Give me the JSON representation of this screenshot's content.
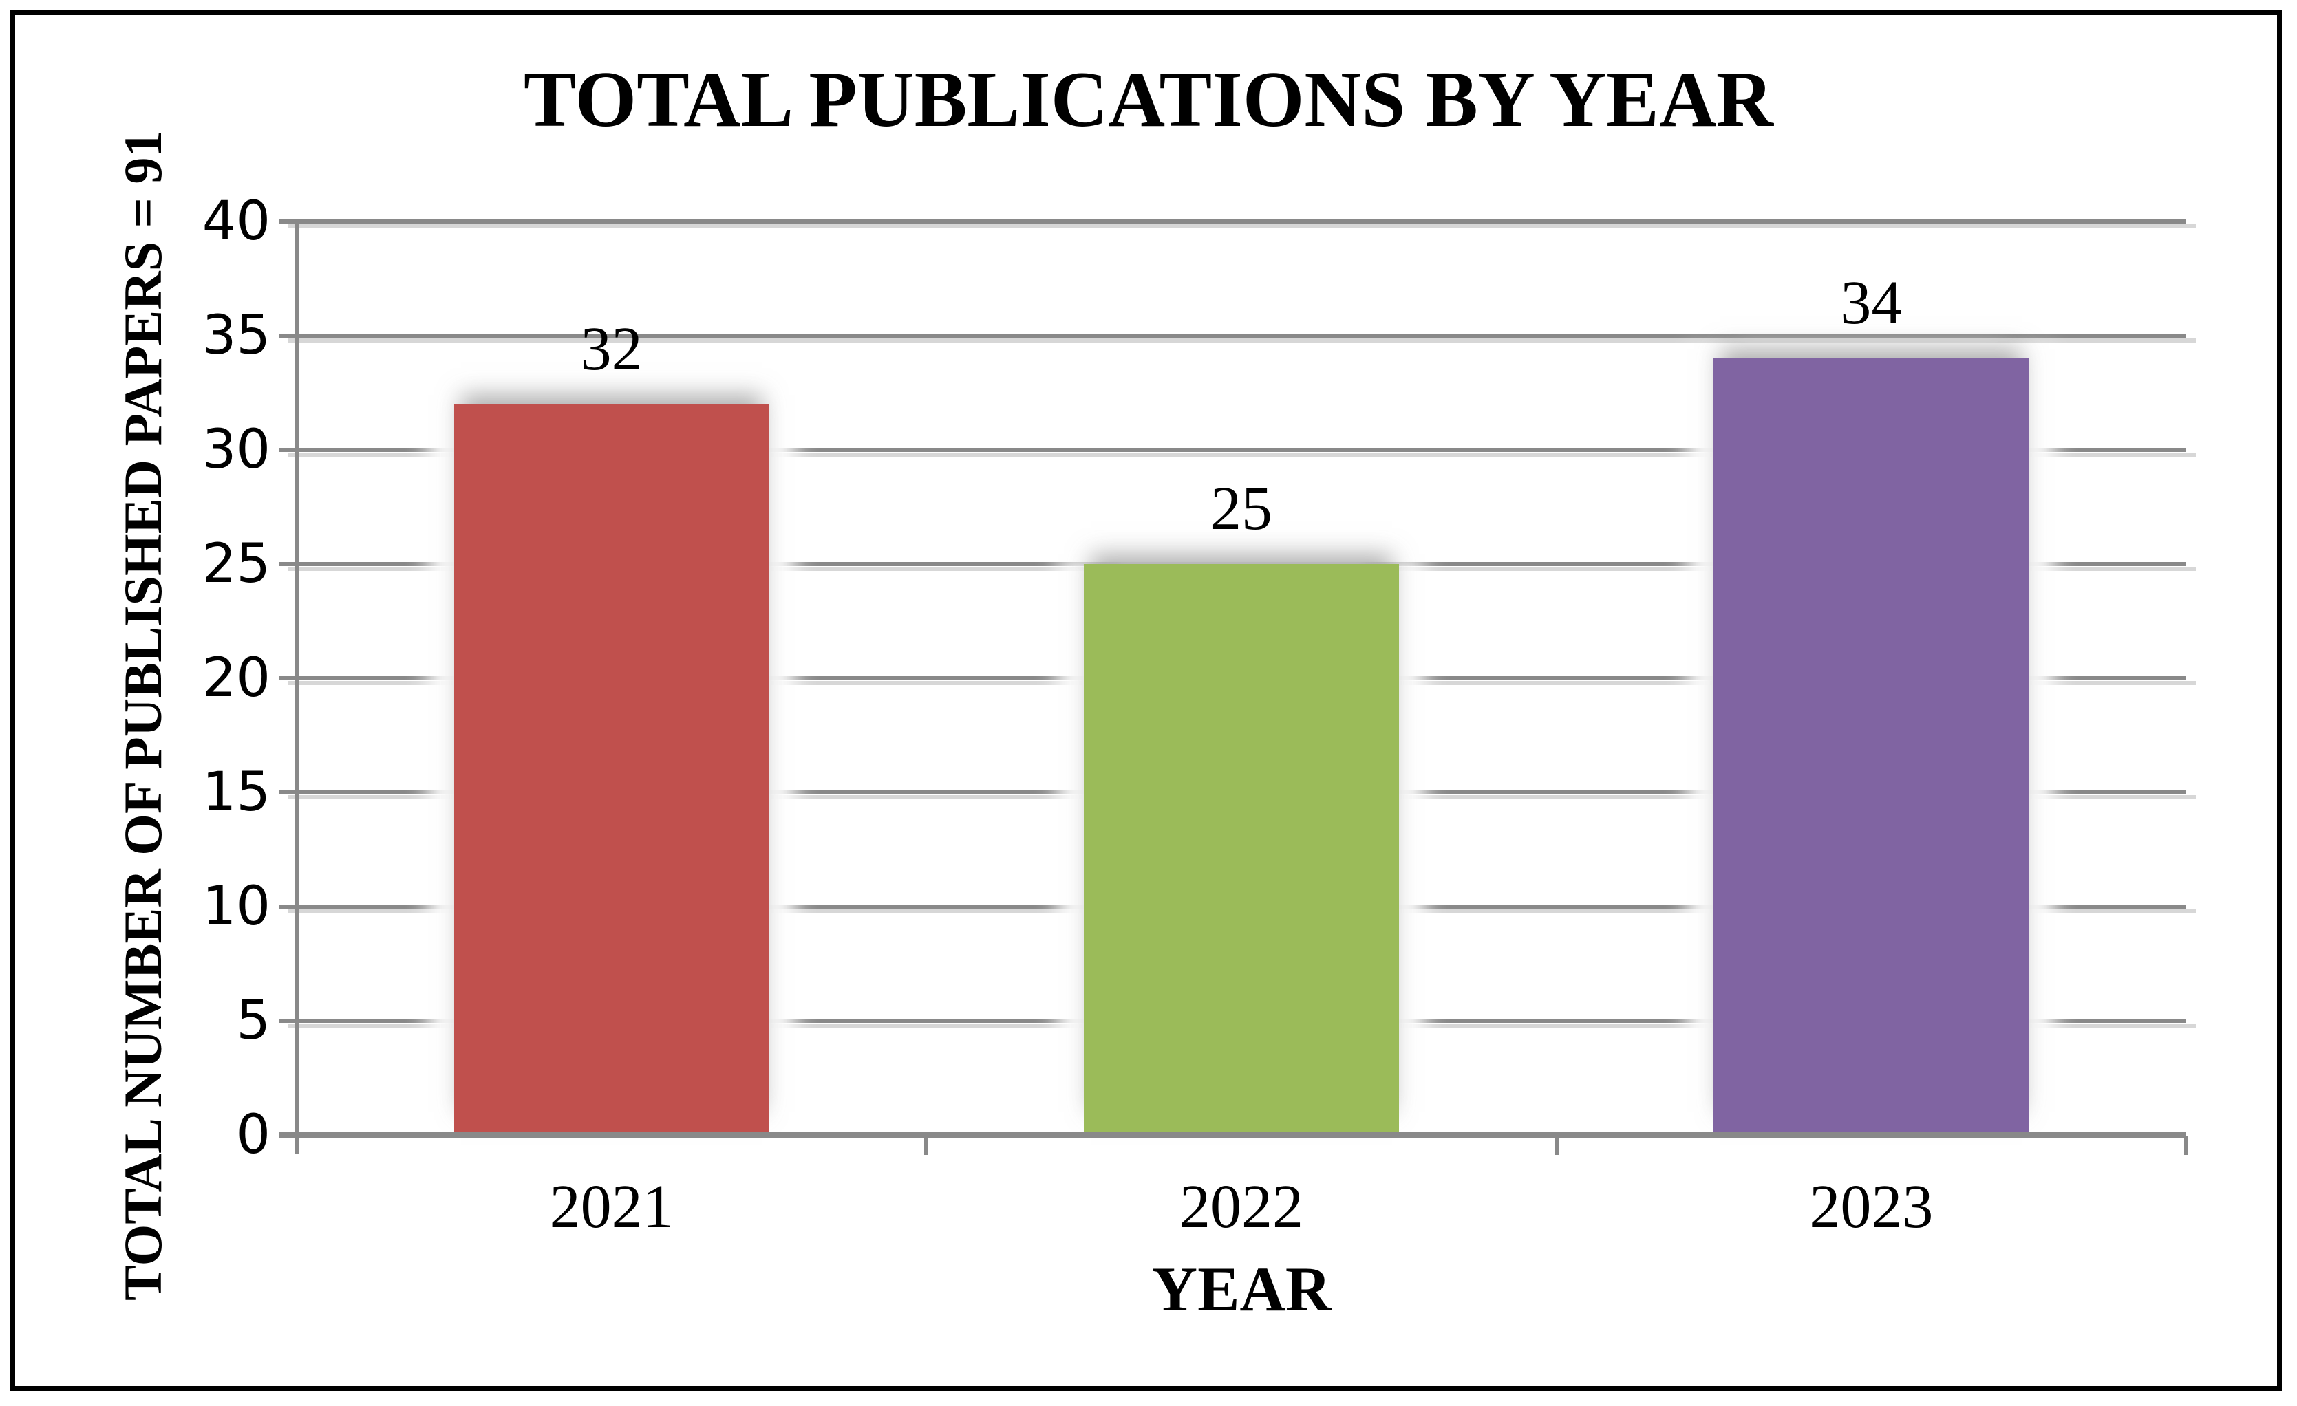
{
  "window": {
    "background": "#ffffff",
    "border_color": "#000000"
  },
  "chart": {
    "title": "TOTAL PUBLICATIONS BY YEAR",
    "x_axis_title": "YEAR",
    "y_axis_title": "TOTAL NUMBER OF PUBLISHED PAPERS = 91"
  },
  "chart_data": {
    "type": "bar",
    "title": "TOTAL PUBLICATIONS BY YEAR",
    "xlabel": "YEAR",
    "ylabel": "TOTAL NUMBER OF PUBLISHED PAPERS = 91",
    "categories": [
      "2021",
      "2022",
      "2023"
    ],
    "values": [
      32,
      25,
      34
    ],
    "data_labels": [
      "32",
      "25",
      "34"
    ],
    "bar_colors": [
      "#c0504d",
      "#9bbb59",
      "#8064a2"
    ],
    "ylim": [
      0,
      40
    ],
    "ytick_interval": 5,
    "yticks": [
      0,
      5,
      10,
      15,
      20,
      25,
      30,
      35,
      40
    ],
    "grid": "horizontal",
    "gridline_color": "#898989",
    "axis_color": "#898989",
    "legend": "none"
  }
}
